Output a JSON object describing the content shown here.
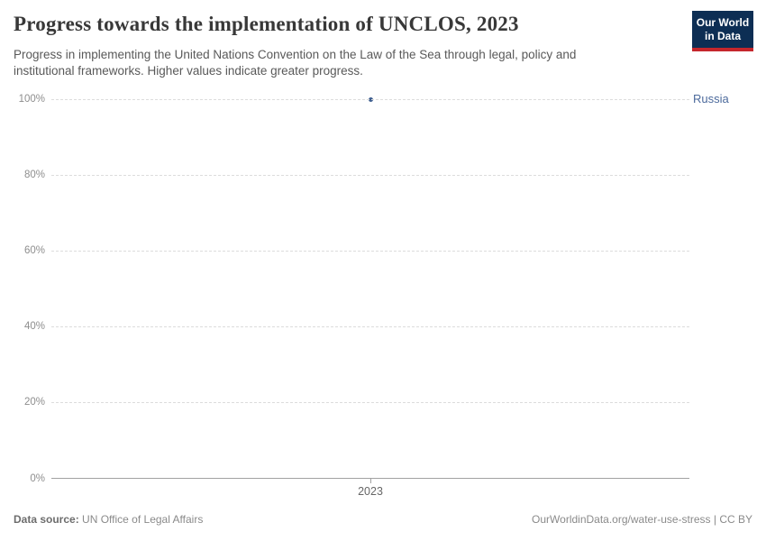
{
  "header": {
    "title": "Progress towards the implementation of UNCLOS, 2023",
    "subtitle": "Progress in implementing the United Nations Convention on the Law of the Sea through legal, policy and institutional frameworks. Higher values indicate greater progress.",
    "logo": {
      "line1": "Our World",
      "line2": "in Data"
    }
  },
  "chart_data": {
    "type": "scatter",
    "title": "Progress towards the implementation of UNCLOS, 2023",
    "x": [
      2023
    ],
    "xticks": [
      "2023"
    ],
    "series": [
      {
        "name": "Russia",
        "values": [
          100
        ]
      }
    ],
    "xlabel": "",
    "ylabel": "",
    "ylim": [
      0,
      100
    ],
    "yticks": [
      0,
      20,
      40,
      60,
      80,
      100
    ],
    "ytick_format": "{}%",
    "grid": "horizontal-dashed",
    "legend_position": "right-entity-label"
  },
  "footer": {
    "datasource_label": "Data source:",
    "datasource_value": "UN Office of Legal Affairs",
    "attribution": "OurWorldinData.org/water-use-stress | CC BY"
  },
  "colors": {
    "logo_navy": "#0d2e54",
    "logo_red": "#c5262c",
    "point": "#3d5e8f",
    "entity_label": "#4c6a9c",
    "gridline": "#dcdcdc",
    "axis_line": "#a1a1a1",
    "title_text": "#383838",
    "subtitle_text": "#595959",
    "tick_text": "#8e8e8e"
  }
}
